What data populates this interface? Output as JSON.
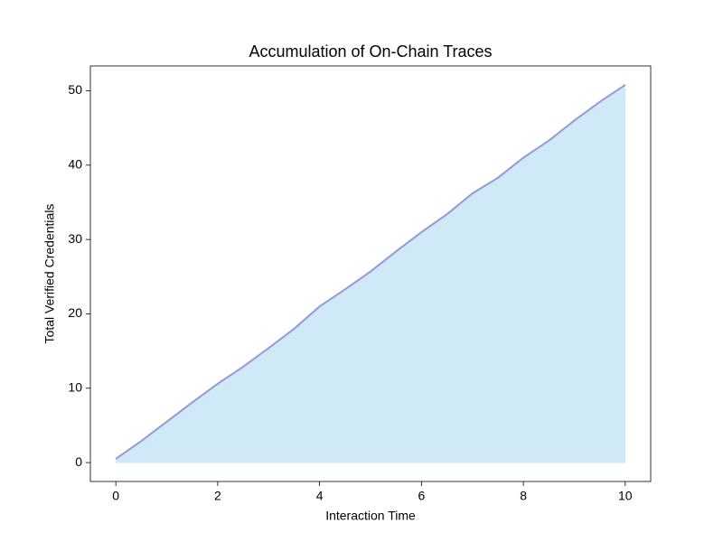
{
  "chart_data": {
    "type": "area",
    "title": "Accumulation of On-Chain Traces",
    "xlabel": "Interaction Time",
    "ylabel": "Total Verified Credentials",
    "x": [
      0,
      0.5,
      1,
      1.5,
      2,
      2.5,
      3,
      3.5,
      4,
      4.5,
      5,
      5.5,
      6,
      6.5,
      7,
      7.5,
      8,
      8.5,
      9,
      9.5,
      10
    ],
    "series": [
      {
        "values": [
          0.5,
          2.9,
          5.5,
          8.1,
          10.6,
          12.9,
          15.4,
          18.0,
          21.0,
          23.3,
          25.7,
          28.4,
          31.0,
          33.4,
          36.2,
          38.3,
          41.0,
          43.3,
          46.0,
          48.5,
          50.8
        ],
        "color": "#8e9be0",
        "fill": "#cfe9f7"
      }
    ],
    "xlim": [
      -0.5,
      10.5
    ],
    "ylim": [
      -2.54,
      53.34
    ],
    "xticks": [
      0,
      2,
      4,
      6,
      8,
      10
    ],
    "yticks": [
      0,
      10,
      20,
      30,
      40,
      50
    ],
    "grid": false
  }
}
